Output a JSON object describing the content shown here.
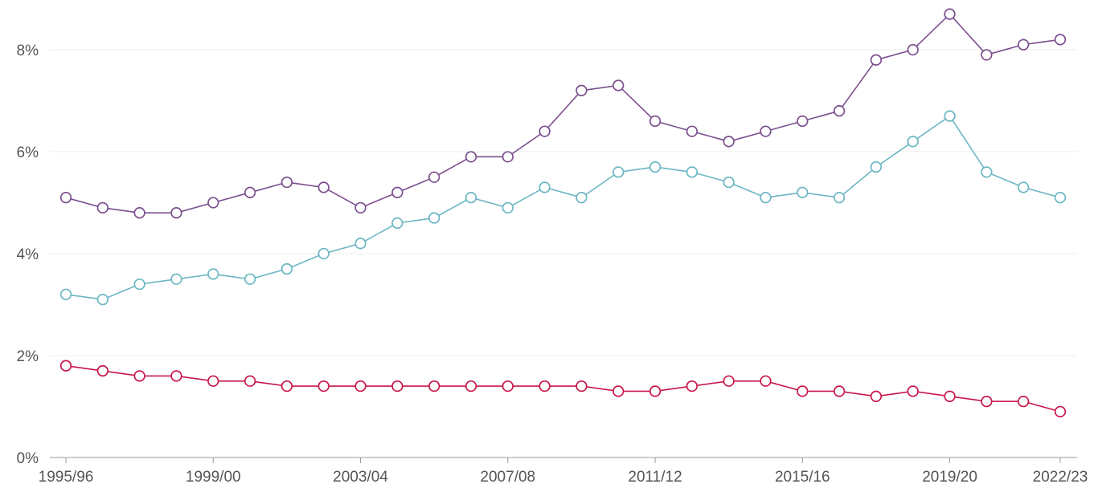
{
  "chart_data": {
    "type": "line",
    "title": "",
    "xlabel": "",
    "ylabel": "",
    "ylim": [
      0,
      8
    ],
    "grid": true,
    "categories": [
      "1995/96",
      "1996/97",
      "1997/98",
      "1998/99",
      "1999/00",
      "2000/01",
      "2001/02",
      "2002/03",
      "2003/04",
      "2004/05",
      "2005/06",
      "2006/07",
      "2007/08",
      "2008/09",
      "2009/10",
      "2010/11",
      "2011/12",
      "2012/13",
      "2013/14",
      "2014/15",
      "2015/16",
      "2016/17",
      "2017/18",
      "2018/19",
      "2019/20",
      "2020/21",
      "2021/22",
      "2022/23"
    ],
    "x_tick_labels": [
      "1995/96",
      "1999/00",
      "2003/04",
      "2007/08",
      "2011/12",
      "2015/16",
      "2019/20",
      "2022/23"
    ],
    "y_ticks": [
      0,
      2,
      4,
      6,
      8
    ],
    "y_tick_labels": [
      "0%",
      "2%",
      "4%",
      "6%",
      "8%"
    ],
    "series": [
      {
        "color": "#7b4f8e",
        "values": [
          5.1,
          4.9,
          4.8,
          4.8,
          5.0,
          5.2,
          5.4,
          5.3,
          4.9,
          5.2,
          5.5,
          5.9,
          5.9,
          6.4,
          7.2,
          7.3,
          6.6,
          6.4,
          6.2,
          6.4,
          6.6,
          6.8,
          7.8,
          8.0,
          8.7,
          7.9,
          8.1,
          8.2
        ]
      },
      {
        "color": "#6cb7c3",
        "values": [
          3.2,
          3.1,
          3.4,
          3.5,
          3.6,
          3.5,
          3.7,
          4.0,
          4.2,
          4.6,
          4.7,
          5.1,
          4.9,
          5.3,
          5.1,
          5.6,
          5.7,
          5.6,
          5.4,
          5.1,
          5.2,
          5.1,
          5.7,
          6.2,
          6.7,
          5.6,
          5.3,
          5.1
        ]
      },
      {
        "color": "#c8174a",
        "values": [
          1.8,
          1.7,
          1.6,
          1.6,
          1.5,
          1.5,
          1.4,
          1.4,
          1.4,
          1.4,
          1.4,
          1.4,
          1.4,
          1.4,
          1.4,
          1.3,
          1.3,
          1.4,
          1.5,
          1.5,
          1.3,
          1.3,
          1.2,
          1.3,
          1.2,
          1.1,
          1.1,
          0.9
        ]
      }
    ]
  }
}
